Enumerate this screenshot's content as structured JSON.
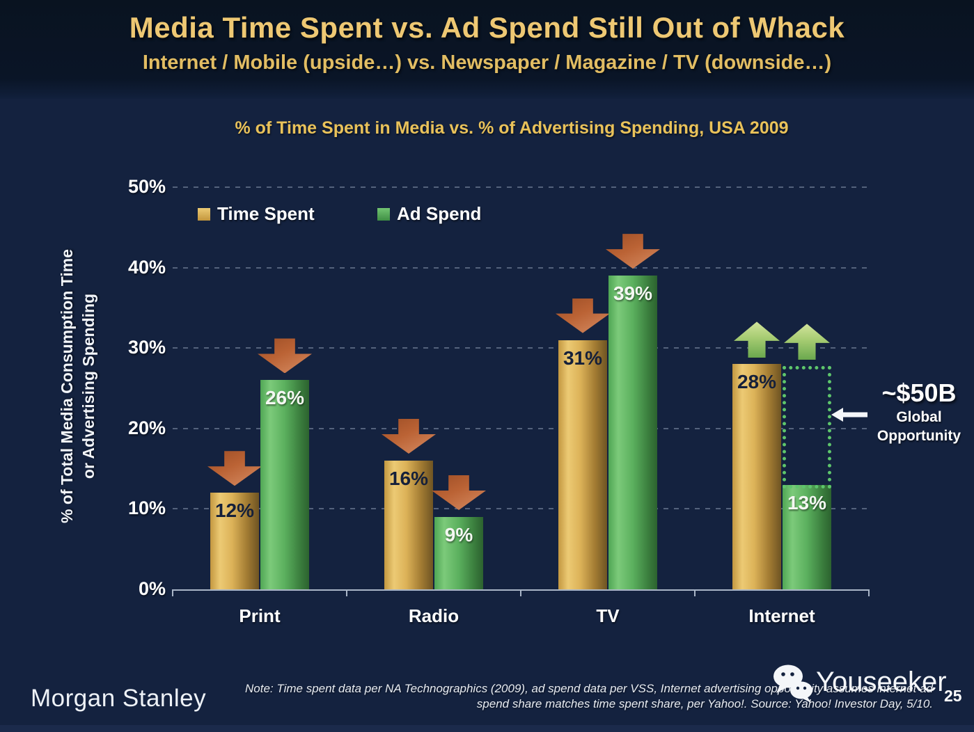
{
  "slide": {
    "title": "Media Time Spent vs. Ad Spend Still Out of Whack",
    "subtitle": "Internet / Mobile (upside…) vs. Newspaper / Magazine / TV (downside…)",
    "page_number": "25"
  },
  "chart_data": {
    "type": "bar",
    "title": "% of Time Spent in Media vs. % of Advertising Spending, USA 2009",
    "categories": [
      "Print",
      "Radio",
      "TV",
      "Internet"
    ],
    "series": [
      {
        "name": "Time Spent",
        "color": "#ddb258",
        "values": [
          12,
          16,
          31,
          28
        ]
      },
      {
        "name": "Ad Spend",
        "color": "#55ab58",
        "values": [
          26,
          9,
          39,
          13
        ]
      }
    ],
    "value_labels": [
      [
        "12%",
        "16%",
        "31%",
        "28%"
      ],
      [
        "26%",
        "9%",
        "39%",
        "13%"
      ]
    ],
    "ylabel_line1": "% of Total Media Consumption Time",
    "ylabel_line2": "or Advertising Spending",
    "y_ticks": [
      "50%",
      "40%",
      "30%",
      "20%",
      "10%",
      "0%"
    ],
    "ylim": [
      0,
      50
    ],
    "grid": "horizontal-dashed",
    "legend_position": "top-left-inside",
    "trend_arrows": {
      "Print": [
        "down",
        "down"
      ],
      "Radio": [
        "down",
        "down"
      ],
      "TV": [
        "down",
        "down"
      ],
      "Internet": [
        "up",
        "up"
      ]
    },
    "annotation": {
      "value": "~$50B",
      "label_line1": "Global",
      "label_line2": "Opportunity",
      "pointer": "left-arrow",
      "marks_range": "Internet ad spend 13% up to time spent 28% (dotted box)"
    }
  },
  "footer": {
    "logo": "Morgan Stanley",
    "note_line1": "Note: Time spent data per NA Technographics (2009), ad spend data per VSS, Internet advertising opportunity assumes internet ad",
    "note_line2": "spend share matches time spent share, per Yahoo!. Source: Yahoo! Investor Day, 5/10.",
    "watermark": "Youseeker"
  },
  "icons": {
    "decline": "down-block-arrow",
    "growth": "up-block-arrow",
    "annotation_pointer": "left-arrow",
    "watermark": "wechat-chat-bubbles"
  },
  "colors": {
    "header_background": "#0a1527",
    "body_background": "#14223f",
    "title_gold": "#eec873",
    "chart_title_gold": "#e9c25a",
    "time_spent_bar": "#ddb258",
    "ad_spend_bar": "#55ab58",
    "down_arrow": "#c06a3e",
    "up_arrow": "#8fc066",
    "opportunity_box_dots": "#5ec66c",
    "axis": "#aab6c8",
    "text_white": "#ffffff"
  }
}
